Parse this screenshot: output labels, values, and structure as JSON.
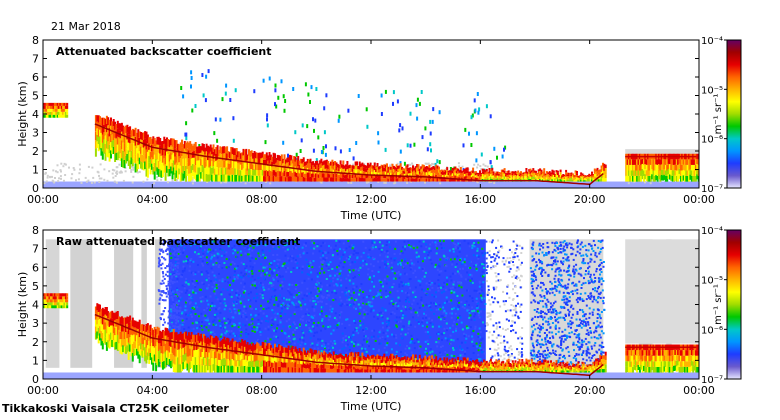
{
  "date": "21 Mar 2018",
  "footer": "Tikkakoski Vaisala CT25K ceilometer",
  "colorbar": {
    "ticks": [
      "10⁻⁷",
      "10⁻⁶",
      "10⁻⁵",
      "10⁻⁴"
    ],
    "unit": "m⁻¹ sr⁻¹",
    "colors": [
      "#e6e6ff",
      "#6a5acd",
      "#1e3cff",
      "#0096ff",
      "#00c8c8",
      "#00c800",
      "#a0dc00",
      "#ffff00",
      "#ffb400",
      "#ff6400",
      "#e60000",
      "#a00000",
      "#640064"
    ]
  },
  "chart_data": [
    {
      "type": "heatmap",
      "title": "Attenuated backscatter coefficient",
      "xlabel": "Time (UTC)",
      "ylabel": "Height (km)",
      "x_ticks": [
        "00:00",
        "04:00",
        "08:00",
        "12:00",
        "16:00",
        "20:00",
        "00:00"
      ],
      "y_ticks": [
        "0",
        "1",
        "2",
        "3",
        "4",
        "5",
        "6",
        "7",
        "8"
      ],
      "xlim": [
        0,
        24
      ],
      "ylim": [
        0,
        8
      ],
      "log_colorscale": true,
      "clim": [
        1e-07,
        0.0001
      ],
      "layer_top_km": [
        [
          0.5,
          4.3
        ],
        [
          1.0,
          4.0
        ],
        [
          2.5,
          3.1
        ],
        [
          4.0,
          2.2
        ],
        [
          6.0,
          1.7
        ],
        [
          8.0,
          1.3
        ],
        [
          10.0,
          0.9
        ],
        [
          12.0,
          0.7
        ],
        [
          14.0,
          0.6
        ],
        [
          16.0,
          0.4
        ],
        [
          18.0,
          0.4
        ],
        [
          20.0,
          0.2
        ],
        [
          21.3,
          1.7
        ],
        [
          24.0,
          1.7
        ]
      ]
    },
    {
      "type": "heatmap",
      "title": "Raw attenuated backscatter coefficient",
      "xlabel": "Time (UTC)",
      "ylabel": "Height (km)",
      "x_ticks": [
        "00:00",
        "04:00",
        "08:00",
        "12:00",
        "16:00",
        "20:00",
        "00:00"
      ],
      "y_ticks": [
        "0",
        "1",
        "2",
        "3",
        "4",
        "5",
        "6",
        "7",
        "8"
      ],
      "xlim": [
        0,
        24
      ],
      "ylim": [
        0,
        8
      ],
      "log_colorscale": true,
      "clim": [
        1e-07,
        0.0001
      ],
      "layer_top_km": [
        [
          0.5,
          4.3
        ],
        [
          1.0,
          4.0
        ],
        [
          2.5,
          3.1
        ],
        [
          4.0,
          2.2
        ],
        [
          6.0,
          1.7
        ],
        [
          8.0,
          1.3
        ],
        [
          10.0,
          0.9
        ],
        [
          12.0,
          0.7
        ],
        [
          14.0,
          0.6
        ],
        [
          16.0,
          0.4
        ],
        [
          18.0,
          0.4
        ],
        [
          20.0,
          0.2
        ],
        [
          21.3,
          1.7
        ],
        [
          24.0,
          1.7
        ]
      ]
    }
  ]
}
